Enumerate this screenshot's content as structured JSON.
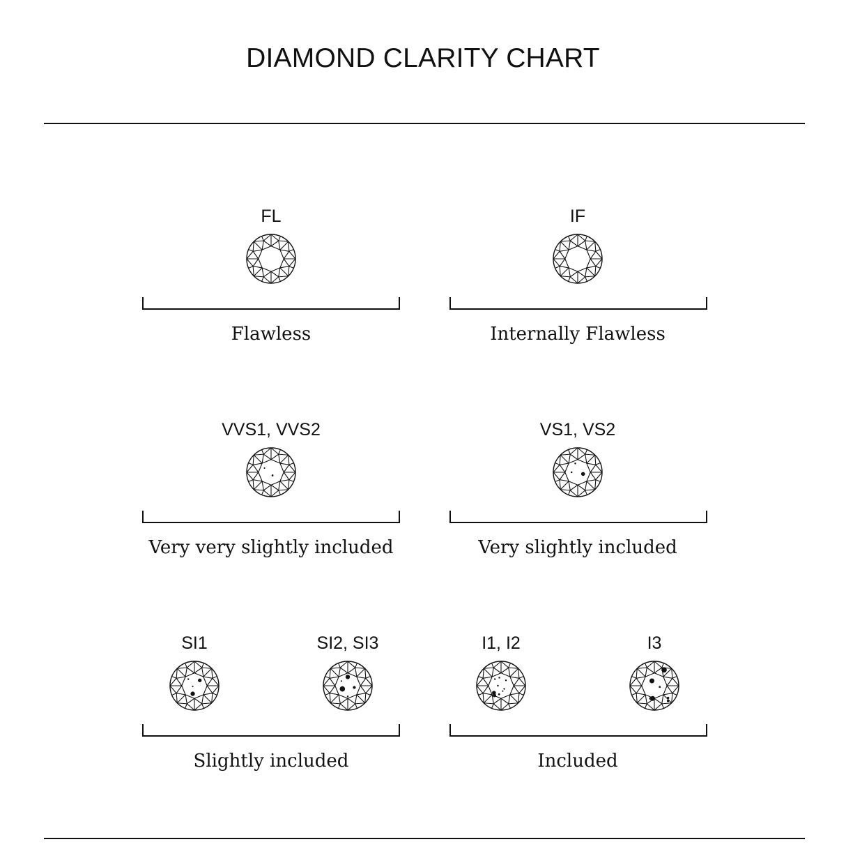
{
  "title": "DIAMOND CLARITY CHART",
  "colors": {
    "ink": "#111111",
    "background": "#ffffff"
  },
  "groups": [
    {
      "description": "Flawless",
      "grades": [
        {
          "label": "FL",
          "inclusions": []
        }
      ]
    },
    {
      "description": "Internally Flawless",
      "grades": [
        {
          "label": "IF",
          "inclusions": []
        }
      ]
    },
    {
      "description": "Very very slightly included",
      "grades": [
        {
          "label": "VVS1, VVS2",
          "inclusions": [
            [
              -0.27,
              -0.17,
              0.03
            ],
            [
              0.06,
              0.13,
              0.04
            ]
          ]
        }
      ]
    },
    {
      "description": "Very slightly included",
      "grades": [
        {
          "label": "VS1, VS2",
          "inclusions": [
            [
              -0.1,
              -0.36,
              0.035
            ],
            [
              -0.25,
              0.0,
              0.035
            ],
            [
              0.22,
              0.07,
              0.08
            ]
          ]
        }
      ]
    },
    {
      "description": "Slightly included",
      "grades": [
        {
          "label": "SI1",
          "inclusions": [
            [
              -0.25,
              -0.27,
              0.035
            ],
            [
              0.22,
              -0.22,
              0.075
            ],
            [
              -0.07,
              0.03,
              0.03
            ],
            [
              -0.07,
              0.33,
              0.09
            ]
          ]
        },
        {
          "label": "SI2, SI3",
          "inclusions": [
            [
              0.0,
              -0.36,
              0.09
            ],
            [
              -0.26,
              -0.19,
              0.03
            ],
            [
              -0.22,
              0.13,
              0.11
            ],
            [
              0.27,
              0.07,
              0.06
            ],
            [
              0.0,
              0.44,
              0.035
            ]
          ]
        }
      ]
    },
    {
      "description": "Included",
      "grades": [
        {
          "label": "I1, I2",
          "inclusions": [
            [
              -0.25,
              -0.27,
              0.035
            ],
            [
              -0.07,
              -0.33,
              0.035
            ],
            [
              0.2,
              -0.22,
              0.035
            ],
            [
              -0.13,
              0.0,
              0.035
            ],
            [
              0.13,
              0.13,
              0.035
            ],
            [
              -0.29,
              0.29,
              0.08
            ],
            [
              0.07,
              0.22,
              0.03
            ],
            [
              -0.27,
              0.4,
              0.07
            ],
            [
              -0.08,
              0.35,
              0.04
            ]
          ]
        },
        {
          "label": "I3",
          "inclusions": [
            [
              0.4,
              -0.65,
              0.11
            ],
            [
              -0.1,
              -0.2,
              0.1
            ],
            [
              -0.07,
              0.52,
              0.1
            ],
            [
              0.22,
              0.05,
              0.04
            ],
            [
              0.56,
              0.5,
              0.05
            ],
            [
              0.56,
              0.62,
              0.05
            ],
            [
              -0.15,
              0.52,
              0.06
            ]
          ]
        }
      ]
    }
  ]
}
